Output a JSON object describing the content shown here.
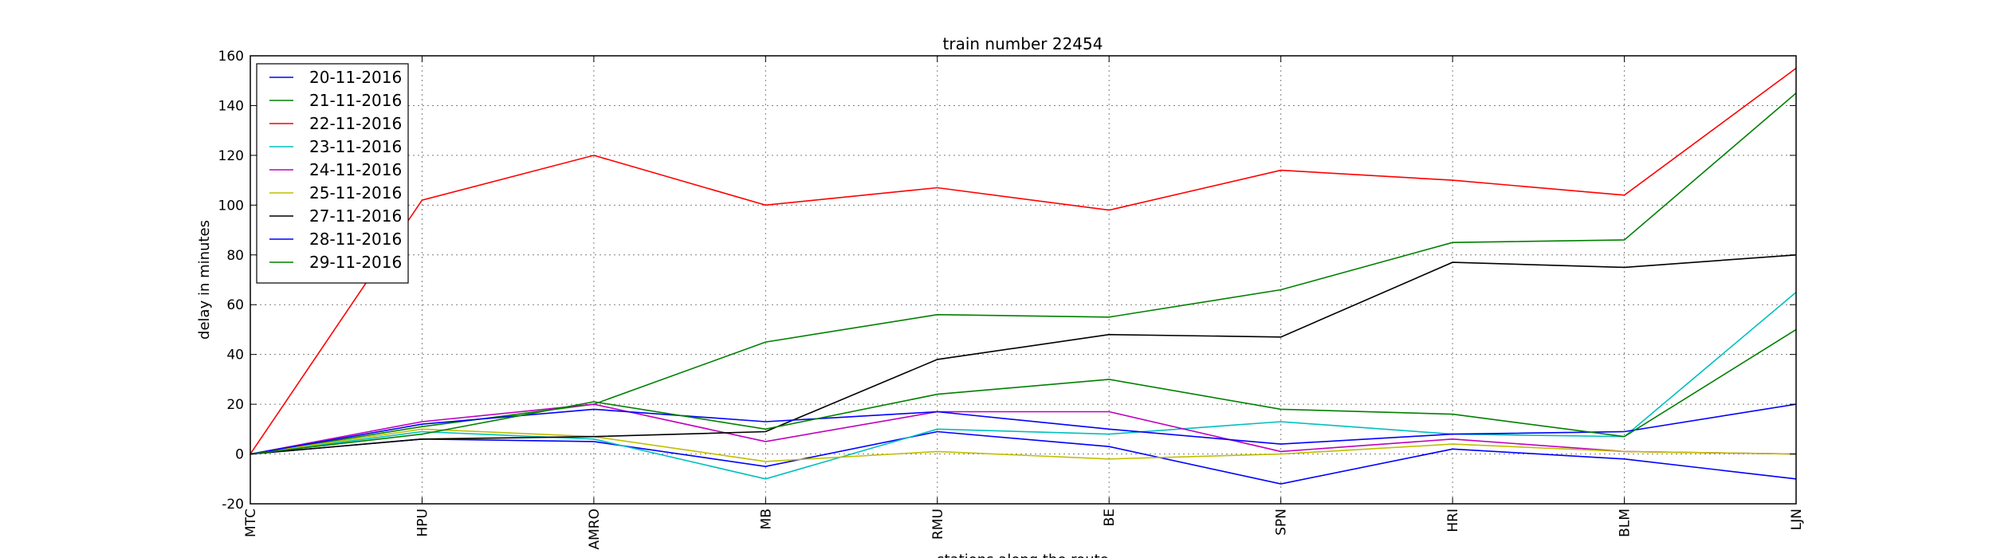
{
  "chart_data": {
    "type": "line",
    "title": "train number 22454",
    "xlabel": "stations along the route",
    "ylabel": "delay in minutes",
    "categories": [
      "MTC",
      "HPU",
      "AMRO",
      "MB",
      "RMU",
      "BE",
      "SPN",
      "HRI",
      "BLM",
      "LJN"
    ],
    "ylim": [
      -20,
      160
    ],
    "yticks": [
      -20,
      0,
      20,
      40,
      60,
      80,
      100,
      120,
      140,
      160
    ],
    "grid": true,
    "legend_position": "upper-left",
    "series": [
      {
        "name": "20-11-2016",
        "color": "#0000ff",
        "values": [
          0,
          6,
          5,
          -5,
          9,
          3,
          -12,
          2,
          -2,
          -10
        ]
      },
      {
        "name": "21-11-2016",
        "color": "#008000",
        "values": [
          0,
          11,
          20,
          45,
          56,
          55,
          66,
          85,
          86,
          145
        ]
      },
      {
        "name": "22-11-2016",
        "color": "#ff0000",
        "values": [
          0,
          102,
          120,
          100,
          107,
          98,
          114,
          110,
          104,
          155
        ]
      },
      {
        "name": "23-11-2016",
        "color": "#00bfbf",
        "values": [
          0,
          9,
          6,
          -10,
          10,
          8,
          13,
          8,
          7,
          65
        ]
      },
      {
        "name": "24-11-2016",
        "color": "#bf00bf",
        "values": [
          0,
          13,
          20,
          5,
          17,
          17,
          1,
          6,
          1,
          0
        ]
      },
      {
        "name": "25-11-2016",
        "color": "#bfbf00",
        "values": [
          0,
          10,
          7,
          -3,
          1,
          -2,
          0,
          4,
          1,
          0
        ]
      },
      {
        "name": "27-11-2016",
        "color": "#000000",
        "values": [
          0,
          6,
          7,
          9,
          38,
          48,
          47,
          77,
          75,
          80
        ]
      },
      {
        "name": "28-11-2016",
        "color": "#0000ff",
        "values": [
          0,
          12,
          18,
          13,
          17,
          10,
          4,
          8,
          9,
          20
        ]
      },
      {
        "name": "29-11-2016",
        "color": "#008000",
        "values": [
          0,
          8,
          21,
          10,
          24,
          30,
          18,
          16,
          7,
          50
        ]
      }
    ]
  }
}
